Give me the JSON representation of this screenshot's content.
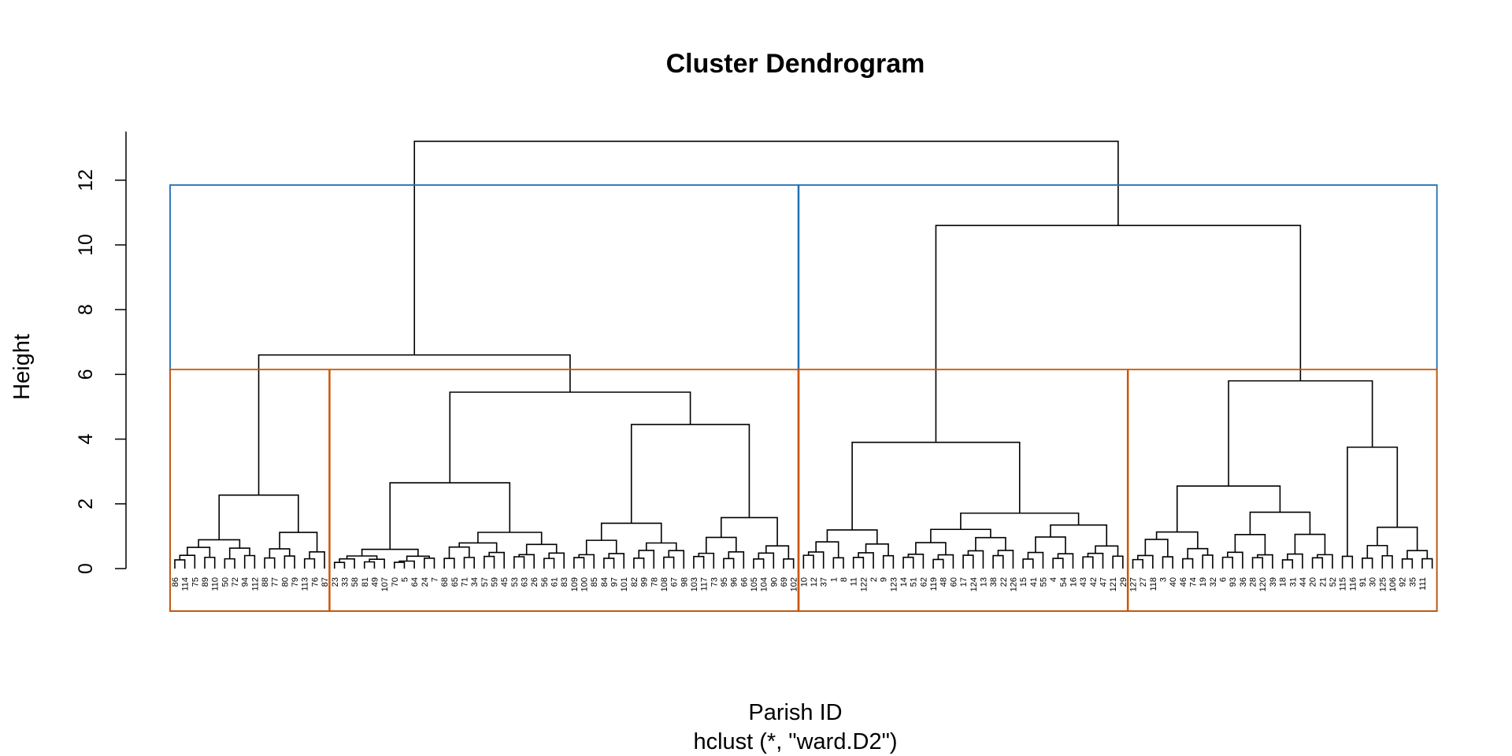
{
  "chart_data": {
    "type": "dendrogram",
    "title": "Cluster Dendrogram",
    "xlabel": "Parish ID",
    "sublabel": "hclust (*, \"ward.D2\")",
    "ylabel": "Height",
    "ylim": [
      0,
      12
    ],
    "yticks": [
      "0",
      "2",
      "4",
      "6",
      "8",
      "10",
      "12"
    ],
    "colors": {
      "tree": "#000000",
      "k2_boxes": "#1f6fb5",
      "k4_boxes": "#cc5500"
    },
    "leaves": [
      "86",
      "114",
      "75",
      "89",
      "110",
      "50",
      "72",
      "94",
      "112",
      "88",
      "77",
      "80",
      "79",
      "113",
      "76",
      "87",
      "23",
      "33",
      "58",
      "81",
      "49",
      "107",
      "70",
      "5",
      "64",
      "24",
      "7",
      "68",
      "65",
      "71",
      "34",
      "57",
      "59",
      "45",
      "53",
      "63",
      "26",
      "56",
      "61",
      "83",
      "109",
      "100",
      "85",
      "84",
      "97",
      "101",
      "82",
      "99",
      "78",
      "108",
      "67",
      "98",
      "103",
      "117",
      "73",
      "95",
      "96",
      "66",
      "105",
      "104",
      "90",
      "69",
      "102",
      "10",
      "12",
      "37",
      "1",
      "8",
      "11",
      "122",
      "2",
      "9",
      "123",
      "14",
      "51",
      "62",
      "119",
      "48",
      "60",
      "17",
      "124",
      "13",
      "38",
      "22",
      "126",
      "15",
      "41",
      "55",
      "4",
      "54",
      "16",
      "43",
      "42",
      "47",
      "121",
      "29",
      "127",
      "27",
      "118",
      "3",
      "40",
      "46",
      "74",
      "19",
      "32",
      "6",
      "93",
      "36",
      "28",
      "120",
      "39",
      "18",
      "31",
      "44",
      "20",
      "21",
      "52",
      "115",
      "116",
      "91",
      "30",
      "125",
      "106",
      "92",
      "35",
      "111"
    ],
    "merges": {
      "root": 13.2,
      "left_main": 6.6,
      "right_main": 10.6,
      "left_sub": 5.45,
      "right_sub": 5.8,
      "cluster3_top": 3.9,
      "cluster1_top": 2.27,
      "left_sub_left": 2.65,
      "left_sub_right": 4.45,
      "right_sub_left": 2.55,
      "right_sub_right": 3.75
    },
    "clusters_k2": [
      [
        1,
        63
      ],
      [
        64,
        127
      ]
    ],
    "clusters_k4": [
      [
        1,
        16
      ],
      [
        17,
        63
      ],
      [
        64,
        96
      ],
      [
        97,
        127
      ]
    ],
    "cut_height_k2": 11.85,
    "cut_height_k4": 6.15
  }
}
